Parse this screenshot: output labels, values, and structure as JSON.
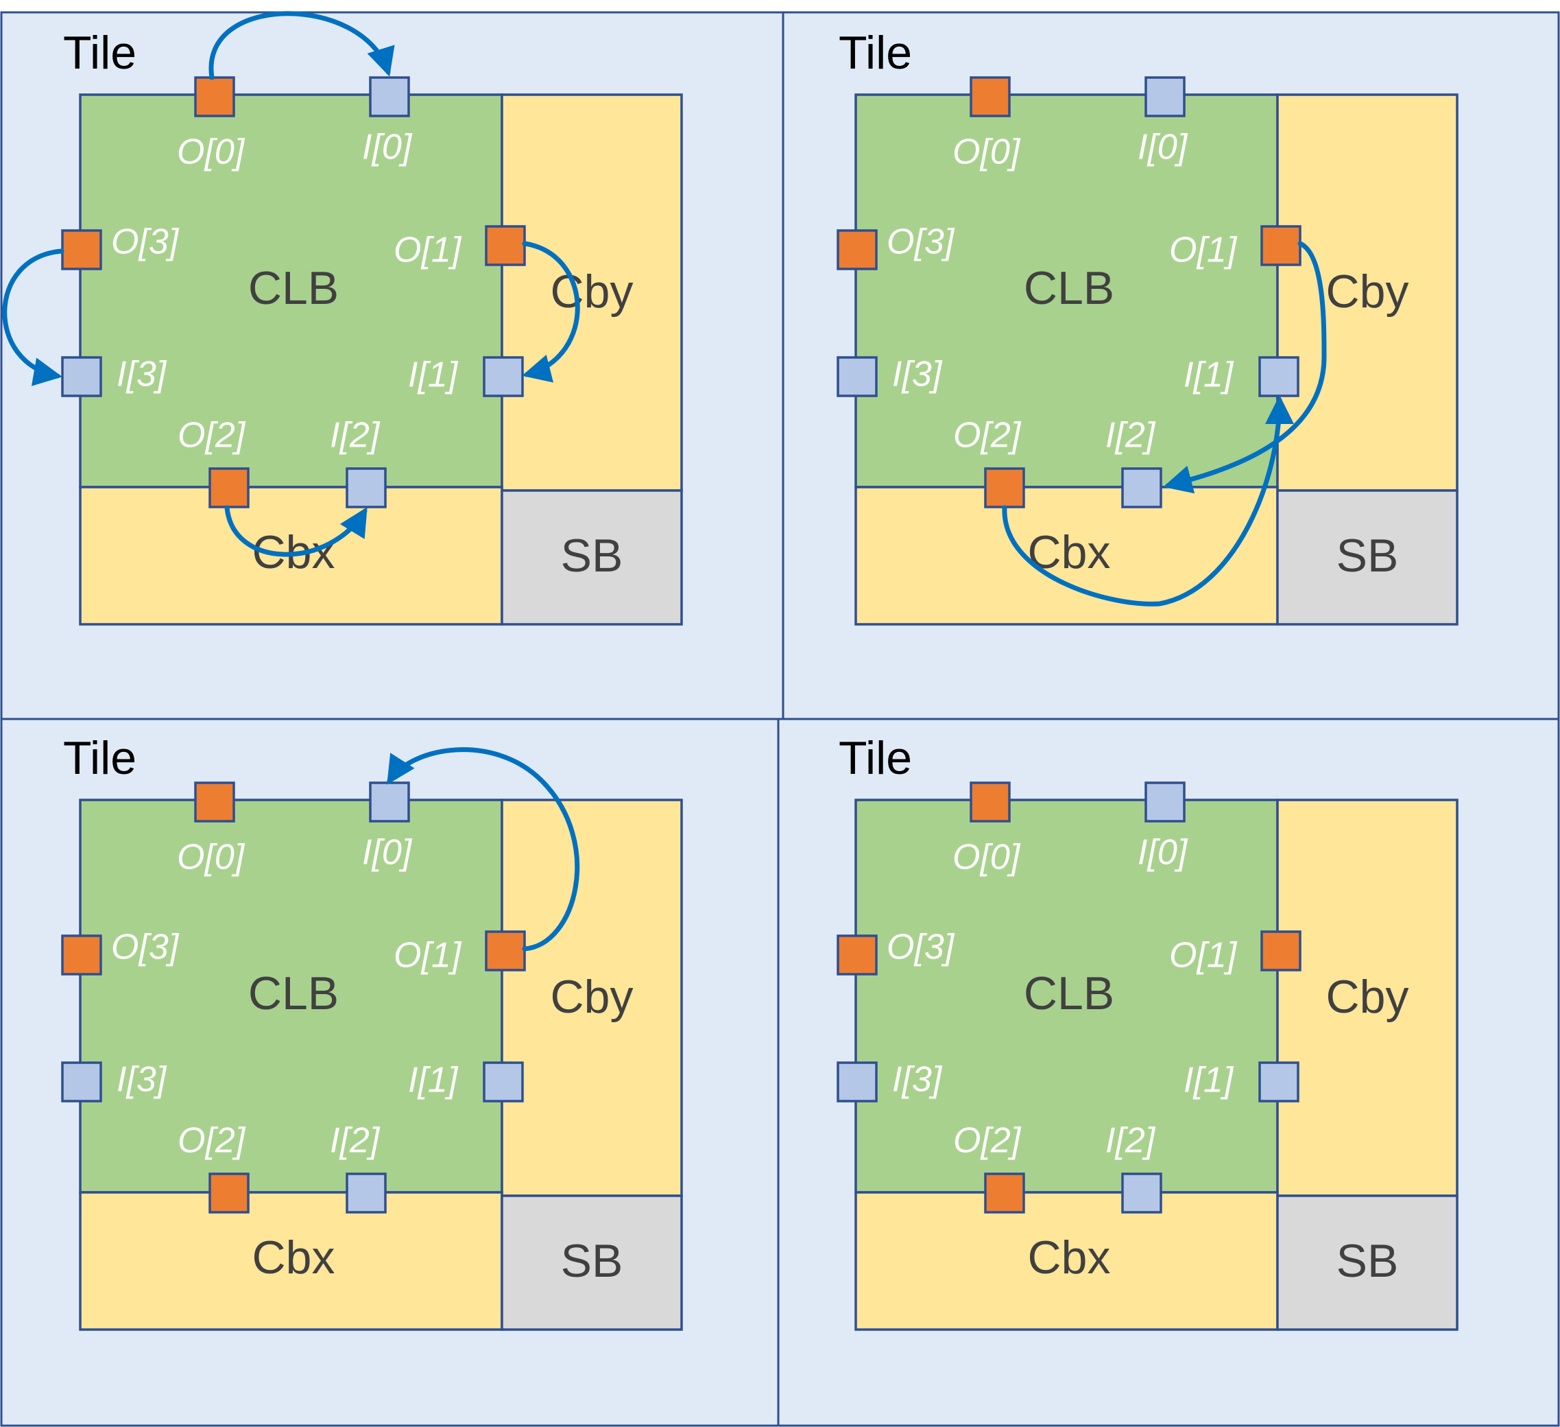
{
  "tile_label": "Tile",
  "region_labels": {
    "clb": "CLB",
    "cby": "Cby",
    "cbx": "Cbx",
    "sb": "SB"
  },
  "pin_labels": {
    "o0": "O[0]",
    "i0": "I[0]",
    "o1": "O[1]",
    "i1": "I[1]",
    "o2": "O[2]",
    "i2": "I[2]",
    "o3": "O[3]",
    "i3": "I[3]"
  },
  "colors": {
    "tile_background": "#dfeaf6",
    "clb": "#a9d18e",
    "connection_box": "#ffe699",
    "switch_box": "#d9d9d9",
    "output_pin": "#ed7d31",
    "input_pin": "#b4c7e7",
    "wire": "#0070c0",
    "outline": "#2f4f8f"
  },
  "tiles": [
    {
      "connections": [
        {
          "from": "O[0]",
          "to": "I[0]"
        },
        {
          "from": "O[1]",
          "to": "I[1]"
        },
        {
          "from": "O[2]",
          "to": "I[2]"
        },
        {
          "from": "O[3]",
          "to": "I[3]"
        }
      ]
    },
    {
      "connections": [
        {
          "from": "O[1]",
          "to": "I[2]"
        },
        {
          "from": "O[2]",
          "to": "I[1]"
        }
      ]
    },
    {
      "connections": [
        {
          "from": "O[1]",
          "to": "I[0]"
        }
      ]
    },
    {
      "connections": []
    }
  ]
}
